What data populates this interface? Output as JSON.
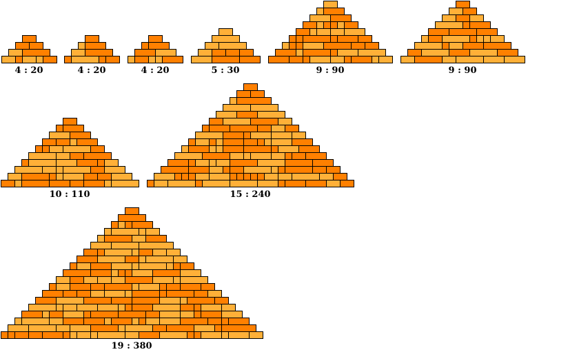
{
  "colors": {
    "dark": "#FF8000",
    "light": "#FFB038",
    "outline": "#000000"
  },
  "figures": [
    {
      "label": "4 : 20",
      "height": 4,
      "area": 20
    },
    {
      "label": "4 : 20",
      "height": 4,
      "area": 20
    },
    {
      "label": "4 : 20",
      "height": 4,
      "area": 20
    },
    {
      "label": "5 : 30",
      "height": 5,
      "area": 30
    },
    {
      "label": "9 : 90",
      "height": 9,
      "area": 90
    },
    {
      "label": "9 : 90",
      "height": 9,
      "area": 90
    },
    {
      "label": "10 : 110",
      "height": 10,
      "area": 110
    },
    {
      "label": "15 : 240",
      "height": 15,
      "area": 240
    },
    {
      "label": "19 : 380",
      "height": 19,
      "area": 380
    }
  ]
}
